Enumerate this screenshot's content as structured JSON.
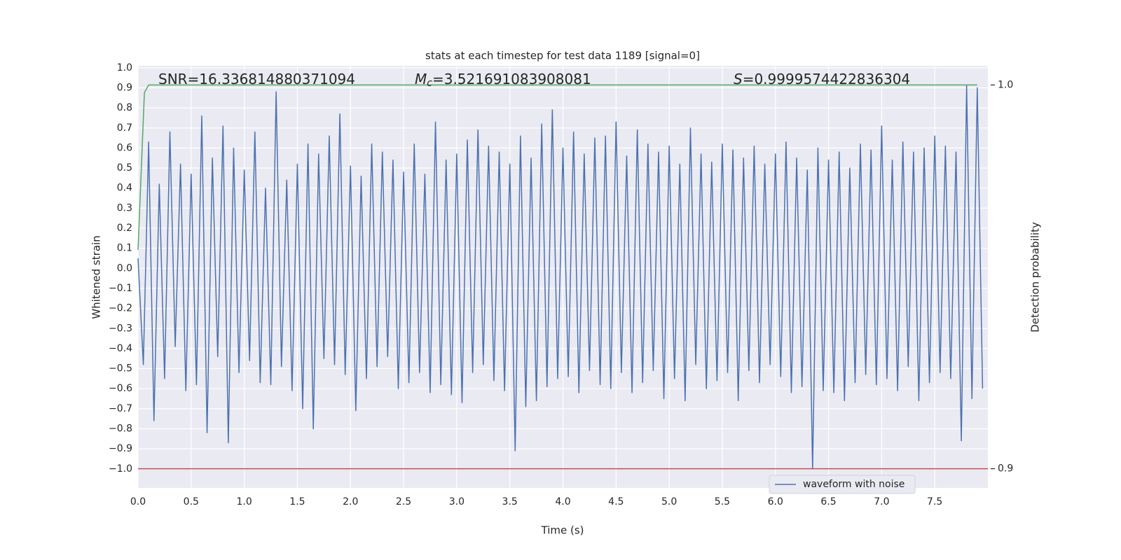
{
  "chart_data": {
    "type": "line",
    "title": "stats at each timestep for test data 1189 [signal=0]",
    "xlabel": "Time (s)",
    "ylabel": "Whitened strain",
    "y2label": "Detection probability",
    "annotations": [
      {
        "text": "SNR=16.336814880371094"
      },
      {
        "symbol": "M",
        "subscript": "c",
        "text": "=3.521691083908081"
      },
      {
        "symbol": "S",
        "text": "=0.9999574422836304"
      }
    ],
    "xlim": [
      0,
      8.0
    ],
    "ylim": [
      -1.095,
      1.01
    ],
    "y2lim": [
      0.895,
      1.005
    ],
    "grid": true,
    "xticks": [
      {
        "value": 0,
        "label": "0.0"
      },
      0.5,
      {
        "value": 1,
        "label": "1.0"
      },
      1.5,
      {
        "value": 2,
        "label": "2.0"
      },
      2.5,
      {
        "value": 3,
        "label": "3.0"
      },
      3.5,
      {
        "value": 4,
        "label": "4.0"
      },
      4.5,
      {
        "value": 5,
        "label": "5.0"
      },
      5.5,
      {
        "value": 6,
        "label": "6.0"
      },
      6.5,
      {
        "value": 7,
        "label": "7.0"
      },
      7.5
    ],
    "yticks": [
      {
        "value": 1,
        "label": "1.0"
      },
      0.9,
      0.8,
      0.7,
      0.6,
      0.5,
      0.4,
      0.3,
      0.2,
      0.1,
      {
        "value": 0,
        "label": "0.0"
      },
      {
        "value": -0.1,
        "label": "−0.1"
      },
      {
        "value": -0.2,
        "label": "−0.2"
      },
      {
        "value": -0.3,
        "label": "−0.3"
      },
      {
        "value": -0.4,
        "label": "−0.4"
      },
      {
        "value": -0.5,
        "label": "−0.5"
      },
      {
        "value": -0.6,
        "label": "−0.6"
      },
      {
        "value": -0.7,
        "label": "−0.7"
      },
      {
        "value": -0.8,
        "label": "−0.8"
      },
      {
        "value": -0.9,
        "label": "−0.9"
      },
      {
        "value": -1,
        "label": "−1.0"
      }
    ],
    "y2ticks": [
      {
        "value": 1,
        "label": "1.0"
      },
      0.9
    ],
    "legend": "lower right",
    "series": [
      {
        "name": "waveform with noise",
        "color": "#4c72b0",
        "x": [
          0,
          0.05,
          0.1,
          0.15,
          0.2,
          0.25,
          0.3,
          0.35,
          0.4,
          0.45,
          0.5,
          0.55,
          0.6,
          0.65,
          0.7,
          0.75,
          0.8,
          0.85,
          0.9,
          0.95,
          1,
          1.05,
          1.1,
          1.15,
          1.2,
          1.25,
          1.3,
          1.35,
          1.4,
          1.45,
          1.5,
          1.55,
          1.6,
          1.65,
          1.7,
          1.75,
          1.8,
          1.85,
          1.9,
          1.95,
          2,
          2.05,
          2.1,
          2.15,
          2.2,
          2.25,
          2.3,
          2.35,
          2.4,
          2.45,
          2.5,
          2.55,
          2.6,
          2.65,
          2.7,
          2.75,
          2.8,
          2.85,
          2.9,
          2.95,
          3,
          3.05,
          3.1,
          3.15,
          3.2,
          3.25,
          3.3,
          3.35,
          3.4,
          3.45,
          3.5,
          3.55,
          3.6,
          3.65,
          3.7,
          3.75,
          3.8,
          3.85,
          3.9,
          3.95,
          4,
          4.05,
          4.1,
          4.15,
          4.2,
          4.25,
          4.3,
          4.35,
          4.4,
          4.45,
          4.5,
          4.55,
          4.6,
          4.65,
          4.7,
          4.75,
          4.8,
          4.85,
          4.9,
          4.95,
          5,
          5.05,
          5.1,
          5.15,
          5.2,
          5.25,
          5.3,
          5.35,
          5.4,
          5.45,
          5.5,
          5.55,
          5.6,
          5.65,
          5.7,
          5.75,
          5.8,
          5.85,
          5.9,
          5.95,
          6,
          6.05,
          6.1,
          6.15,
          6.2,
          6.25,
          6.3,
          6.35,
          6.4,
          6.45,
          6.5,
          6.55,
          6.6,
          6.65,
          6.7,
          6.75,
          6.8,
          6.85,
          6.9,
          6.95,
          7,
          7.05,
          7.1,
          7.15,
          7.2,
          7.25,
          7.3,
          7.35,
          7.4,
          7.45,
          7.5,
          7.55,
          7.6,
          7.65,
          7.7,
          7.75,
          7.8,
          7.85,
          7.9,
          7.95
        ],
        "values": [
          0.05,
          -0.48,
          0.63,
          -0.76,
          0.42,
          -0.55,
          0.68,
          -0.39,
          0.52,
          -0.61,
          0.47,
          -0.58,
          0.76,
          -0.82,
          0.55,
          -0.44,
          0.71,
          -0.87,
          0.6,
          -0.52,
          0.49,
          -0.46,
          0.68,
          -0.57,
          0.4,
          -0.58,
          0.88,
          -0.49,
          0.44,
          -0.61,
          0.52,
          -0.7,
          0.62,
          -0.8,
          0.57,
          -0.45,
          0.66,
          -0.48,
          0.77,
          -0.53,
          0.51,
          -0.71,
          0.46,
          -0.55,
          0.62,
          -0.49,
          0.58,
          -0.44,
          0.54,
          -0.6,
          0.48,
          -0.57,
          0.62,
          -0.52,
          0.47,
          -0.62,
          0.73,
          -0.58,
          0.54,
          -0.63,
          0.57,
          -0.67,
          0.64,
          -0.52,
          0.69,
          -0.48,
          0.61,
          -0.56,
          0.58,
          -0.61,
          0.52,
          -0.91,
          0.66,
          -0.69,
          0.55,
          -0.66,
          0.72,
          -0.59,
          0.79,
          -0.55,
          0.6,
          -0.54,
          0.68,
          -0.62,
          0.57,
          -0.51,
          0.65,
          -0.58,
          0.66,
          -0.6,
          0.73,
          -0.52,
          0.56,
          -0.62,
          0.69,
          -0.57,
          0.62,
          -0.51,
          0.58,
          -0.65,
          0.61,
          -0.55,
          0.52,
          -0.66,
          0.7,
          -0.48,
          0.57,
          -0.6,
          0.53,
          -0.56,
          0.62,
          -0.52,
          0.59,
          -0.66,
          0.55,
          -0.51,
          0.61,
          -0.57,
          0.52,
          -0.48,
          0.57,
          -0.54,
          0.63,
          -0.62,
          0.55,
          -0.59,
          0.49,
          -1.0,
          0.6,
          -0.61,
          0.54,
          -0.62,
          0.58,
          -0.66,
          0.5,
          -0.57,
          0.62,
          -0.53,
          0.59,
          -0.58,
          0.71,
          -0.55,
          0.54,
          -0.61,
          0.63,
          -0.49,
          0.58,
          -0.66,
          0.6,
          -0.57,
          0.66,
          -0.52,
          0.61,
          -0.55,
          0.58,
          -0.86,
          0.91,
          -0.65,
          0.9,
          -0.6
        ]
      }
    ],
    "probability": {
      "color": "#55a868",
      "axis": "y2",
      "x": [
        0,
        0.06,
        0.1,
        7.9
      ],
      "values": [
        0.957,
        0.998,
        1.0,
        1.0
      ]
    },
    "threshold": {
      "color": "#c44e52",
      "axis": "y2",
      "value": 0.9
    }
  }
}
